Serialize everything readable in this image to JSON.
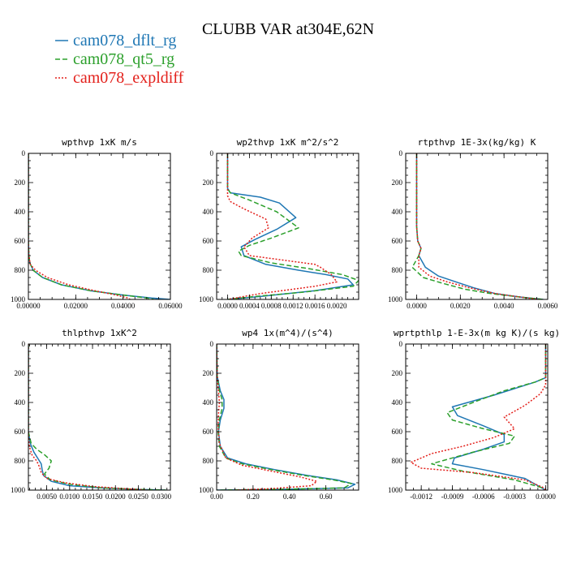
{
  "figure": {
    "title": "CLUBB VAR at304E,62N",
    "legend": [
      {
        "label": "cam078_dflt_rg",
        "color": "#1f77b4",
        "dash": "solid"
      },
      {
        "label": "cam078_qt5_rg",
        "color": "#2ca02c",
        "dash": "dash"
      },
      {
        "label": "cam078_expldiff",
        "color": "#e3201b",
        "dash": "dot"
      }
    ]
  },
  "chart_data": [
    {
      "type": "line",
      "title": "wpthvp  1xK m/s",
      "xlim": [
        0,
        0.06
      ],
      "ylim": [
        1000,
        0
      ],
      "y_inverted": true,
      "xticks": [
        0,
        0.02,
        0.04,
        0.06
      ],
      "xticklabels": [
        "0.00000",
        "0.02000",
        "0.04000",
        "0.06000"
      ],
      "yticks": [
        0,
        200,
        400,
        600,
        800,
        1000
      ],
      "yticklabels": [
        "0",
        "200",
        "400",
        "600",
        "800",
        "1000"
      ],
      "series": [
        {
          "name": "cam078_dflt_rg",
          "color": "#1f77b4",
          "dash": "solid",
          "x": [
            0,
            0,
            0.0002,
            0.0006,
            0.002,
            0.006,
            0.014,
            0.026,
            0.04,
            0.052,
            0.06
          ],
          "y": [
            0,
            600,
            700,
            750,
            800,
            850,
            900,
            940,
            970,
            990,
            1000
          ]
        },
        {
          "name": "cam078_qt5_rg",
          "color": "#2ca02c",
          "dash": "dash",
          "x": [
            0,
            0,
            0.0002,
            0.0006,
            0.002,
            0.006,
            0.014,
            0.026,
            0.04,
            0.05,
            0.053
          ],
          "y": [
            0,
            600,
            700,
            750,
            800,
            850,
            900,
            940,
            970,
            990,
            1000
          ]
        },
        {
          "name": "cam078_expldiff",
          "color": "#e3201b",
          "dash": "dot",
          "x": [
            0,
            0,
            0.0002,
            0.0008,
            0.003,
            0.008,
            0.017,
            0.028,
            0.037,
            0.042,
            0.043
          ],
          "y": [
            0,
            600,
            700,
            760,
            800,
            850,
            900,
            940,
            970,
            990,
            1000
          ]
        }
      ]
    },
    {
      "type": "line",
      "title": "wp2thvp  1xK m^2/s^2",
      "xlim": [
        -0.0002,
        0.0024
      ],
      "ylim": [
        1000,
        0
      ],
      "y_inverted": true,
      "xticks": [
        0,
        0.0004,
        0.0008,
        0.0012,
        0.0016,
        0.002
      ],
      "xticklabels": [
        "0.0000",
        "0.0004",
        "0.0008",
        "0.0012",
        "0.0016",
        "0.0020"
      ],
      "yticks": [
        0,
        200,
        400,
        600,
        800,
        1000
      ],
      "yticklabels": [
        "0",
        "200",
        "400",
        "600",
        "800",
        "1000"
      ],
      "series": [
        {
          "name": "cam078_dflt_rg",
          "color": "#1f77b4",
          "dash": "solid",
          "x": [
            0,
            0,
            5e-05,
            0.0006,
            0.00095,
            0.00125,
            0.0009,
            0.0005,
            0.00025,
            0.0003,
            0.0007,
            0.0013,
            0.0018,
            0.0022,
            0.0023,
            0.0016,
            0.0006,
            0
          ],
          "y": [
            0,
            240,
            270,
            300,
            340,
            440,
            520,
            590,
            640,
            700,
            760,
            800,
            830,
            860,
            900,
            940,
            980,
            1000
          ]
        },
        {
          "name": "cam078_qt5_rg",
          "color": "#2ca02c",
          "dash": "dash",
          "x": [
            0,
            0,
            5e-05,
            0.0004,
            0.0009,
            0.0013,
            0.0008,
            0.0004,
            0.0002,
            0.00025,
            0.0008,
            0.0015,
            0.0021,
            0.0024,
            0.0023,
            0.0014,
            0.0005,
            0
          ],
          "y": [
            0,
            240,
            270,
            320,
            400,
            510,
            580,
            630,
            670,
            700,
            750,
            790,
            830,
            870,
            910,
            950,
            980,
            1000
          ]
        },
        {
          "name": "cam078_expldiff",
          "color": "#e3201b",
          "dash": "dot",
          "x": [
            0,
            0,
            5e-05,
            0.0003,
            0.0007,
            0.00075,
            0.00045,
            0.0003,
            0.0004,
            0.001,
            0.0016,
            0.0017,
            0.0019,
            0.002,
            0.0016,
            0.0006,
            0
          ],
          "y": [
            0,
            290,
            330,
            380,
            450,
            510,
            580,
            640,
            700,
            730,
            760,
            780,
            830,
            880,
            910,
            960,
            1000
          ]
        }
      ]
    },
    {
      "type": "line",
      "title": "rtpthvp  1E-3x(kg/kg) K",
      "xlim": [
        -0.0005,
        0.006
      ],
      "ylim": [
        1000,
        0
      ],
      "y_inverted": true,
      "xticks": [
        0,
        0.002,
        0.004,
        0.006
      ],
      "xticklabels": [
        "0.0000",
        "0.0020",
        "0.0040",
        "0.0060"
      ],
      "yticks": [
        0,
        200,
        400,
        600,
        800,
        1000
      ],
      "yticklabels": [
        "0",
        "200",
        "400",
        "600",
        "800",
        "1000"
      ],
      "series": [
        {
          "name": "cam078_dflt_rg",
          "color": "#1f77b4",
          "dash": "solid",
          "x": [
            0,
            0,
            5e-05,
            0.0002,
            0.0001,
            0.0004,
            0.001,
            0.0018,
            0.0026,
            0.0036,
            0.0048,
            0.0058
          ],
          "y": [
            0,
            500,
            600,
            650,
            700,
            780,
            840,
            880,
            920,
            960,
            985,
            1000
          ]
        },
        {
          "name": "cam078_qt5_rg",
          "color": "#2ca02c",
          "dash": "dash",
          "x": [
            0,
            0,
            5e-05,
            0.0002,
            0.0001,
            -0.0002,
            0.0003,
            0.0012,
            0.0022,
            0.0034,
            0.0048,
            0.0058
          ],
          "y": [
            0,
            500,
            600,
            650,
            700,
            780,
            850,
            890,
            930,
            960,
            985,
            1000
          ]
        },
        {
          "name": "cam078_expldiff",
          "color": "#e3201b",
          "dash": "dot",
          "x": [
            0,
            0,
            5e-05,
            0.0002,
            0.0001,
            0.0001,
            0.0006,
            0.0014,
            0.0024,
            0.0036,
            0.0048,
            0.0056
          ],
          "y": [
            0,
            500,
            600,
            650,
            700,
            780,
            840,
            880,
            920,
            960,
            985,
            1000
          ]
        }
      ]
    },
    {
      "type": "line",
      "title": "thlpthvp  1xK^2",
      "xlim": [
        0.001,
        0.032
      ],
      "ylim": [
        1000,
        0
      ],
      "y_inverted": true,
      "xticks": [
        0.005,
        0.01,
        0.015,
        0.02,
        0.025,
        0.03
      ],
      "xticklabels": [
        "0.0050",
        "0.0100",
        "0.0150",
        "0.0200",
        "0.0250",
        "0.0300"
      ],
      "yticks": [
        0,
        200,
        400,
        600,
        800,
        1000
      ],
      "yticklabels": [
        "0",
        "200",
        "400",
        "600",
        "800",
        "1000"
      ],
      "series": [
        {
          "name": "cam078_dflt_rg",
          "color": "#1f77b4",
          "dash": "solid",
          "x": [
            0.001,
            0.001,
            0.0014,
            0.0022,
            0.003,
            0.0038,
            0.004,
            0.0043,
            0.006,
            0.01,
            0.017,
            0.025,
            0.031
          ],
          "y": [
            0,
            600,
            680,
            740,
            780,
            820,
            860,
            900,
            940,
            970,
            985,
            995,
            1000
          ]
        },
        {
          "name": "cam078_qt5_rg",
          "color": "#2ca02c",
          "dash": "dash",
          "x": [
            0.001,
            0.001,
            0.0016,
            0.0028,
            0.0046,
            0.006,
            0.0055,
            0.0045,
            0.0058,
            0.01,
            0.017,
            0.025,
            0.031
          ],
          "y": [
            0,
            600,
            680,
            720,
            760,
            800,
            850,
            890,
            930,
            960,
            985,
            995,
            1000
          ]
        },
        {
          "name": "cam078_expldiff",
          "color": "#e3201b",
          "dash": "dot",
          "x": [
            0.001,
            0.001,
            0.0012,
            0.0018,
            0.0028,
            0.0034,
            0.0038,
            0.005,
            0.009,
            0.015,
            0.022,
            0.027
          ],
          "y": [
            0,
            620,
            700,
            760,
            800,
            840,
            880,
            920,
            950,
            975,
            990,
            1000
          ]
        }
      ]
    },
    {
      "type": "line",
      "title": "wp4  1x(m^4)/(s^4)",
      "xlim": [
        0,
        0.78
      ],
      "ylim": [
        1000,
        0
      ],
      "y_inverted": true,
      "xticks": [
        0,
        0.2,
        0.4,
        0.6
      ],
      "xticklabels": [
        "0.00",
        "0.20",
        "0.40",
        "0.60"
      ],
      "yticks": [
        0,
        200,
        400,
        600,
        800,
        1000
      ],
      "yticklabels": [
        "0",
        "200",
        "400",
        "600",
        "800",
        "1000"
      ],
      "series": [
        {
          "name": "cam078_dflt_rg",
          "color": "#1f77b4",
          "dash": "solid",
          "x": [
            0,
            0.003,
            0.02,
            0.04,
            0.04,
            0.02,
            0.01,
            0.02,
            0.06,
            0.16,
            0.32,
            0.5,
            0.66,
            0.76,
            0.72,
            0.35,
            0
          ],
          "y": [
            0,
            220,
            320,
            380,
            440,
            520,
            600,
            700,
            780,
            820,
            860,
            900,
            930,
            960,
            985,
            995,
            1000
          ]
        },
        {
          "name": "cam078_qt5_rg",
          "color": "#2ca02c",
          "dash": "dash",
          "x": [
            0,
            0.003,
            0.015,
            0.03,
            0.03,
            0.015,
            0.008,
            0.015,
            0.05,
            0.14,
            0.3,
            0.48,
            0.64,
            0.74,
            0.7,
            0.33,
            0
          ],
          "y": [
            0,
            220,
            320,
            380,
            440,
            520,
            600,
            700,
            780,
            820,
            860,
            900,
            930,
            955,
            985,
            995,
            1000
          ]
        },
        {
          "name": "cam078_expldiff",
          "color": "#e3201b",
          "dash": "dot",
          "x": [
            0,
            0.003,
            0.01,
            0.015,
            0.01,
            0.008,
            0.015,
            0.05,
            0.14,
            0.3,
            0.46,
            0.55,
            0.52,
            0.3,
            0.1
          ],
          "y": [
            0,
            220,
            320,
            400,
            480,
            560,
            680,
            780,
            830,
            870,
            910,
            940,
            970,
            990,
            1000
          ]
        }
      ]
    },
    {
      "type": "line",
      "title": "wprtpthlp  1-E-3x(m kg K)/(s kg)",
      "xlim": [
        -0.00135,
        2e-05
      ],
      "ylim": [
        1000,
        0
      ],
      "y_inverted": true,
      "xticks": [
        -0.0012,
        -0.0009,
        -0.0006,
        -0.0003,
        0
      ],
      "xticklabels": [
        "-0.0012",
        "-0.0009",
        "-0.0006",
        "-0.0003",
        "0.0000"
      ],
      "yticks": [
        0,
        200,
        400,
        600,
        800,
        1000
      ],
      "yticklabels": [
        "0",
        "200",
        "400",
        "600",
        "800",
        "1000"
      ],
      "series": [
        {
          "name": "cam078_dflt_rg",
          "color": "#1f77b4",
          "dash": "solid",
          "x": [
            0,
            0,
            -0.0001,
            -0.0005,
            -0.0009,
            -0.00085,
            -0.0006,
            -0.0004,
            -0.0004,
            -0.0006,
            -0.00088,
            -0.0009,
            -0.0006,
            -0.0002,
            -5e-05,
            0
          ],
          "y": [
            0,
            230,
            260,
            350,
            430,
            490,
            560,
            620,
            670,
            720,
            780,
            820,
            860,
            920,
            980,
            1000
          ]
        },
        {
          "name": "cam078_qt5_rg",
          "color": "#2ca02c",
          "dash": "dash",
          "x": [
            0,
            0,
            -0.0001,
            -0.0004,
            -0.0007,
            -0.00095,
            -0.0009,
            -0.0006,
            -0.0003,
            -0.00035,
            -0.0007,
            -0.0011,
            -0.0008,
            -0.0003,
            -5e-05,
            0
          ],
          "y": [
            0,
            230,
            260,
            320,
            400,
            470,
            520,
            580,
            630,
            680,
            740,
            820,
            870,
            930,
            980,
            1000
          ]
        },
        {
          "name": "cam078_expldiff",
          "color": "#e3201b",
          "dash": "dot",
          "x": [
            0,
            0,
            -5e-05,
            -0.0002,
            -0.0004,
            -0.0003,
            -0.0005,
            -0.0008,
            -0.0011,
            -0.0013,
            -0.0012,
            -0.0007,
            -0.0002,
            -3e-05,
            0
          ],
          "y": [
            0,
            280,
            340,
            420,
            500,
            580,
            640,
            700,
            750,
            810,
            850,
            880,
            930,
            980,
            1000
          ]
        }
      ]
    }
  ]
}
